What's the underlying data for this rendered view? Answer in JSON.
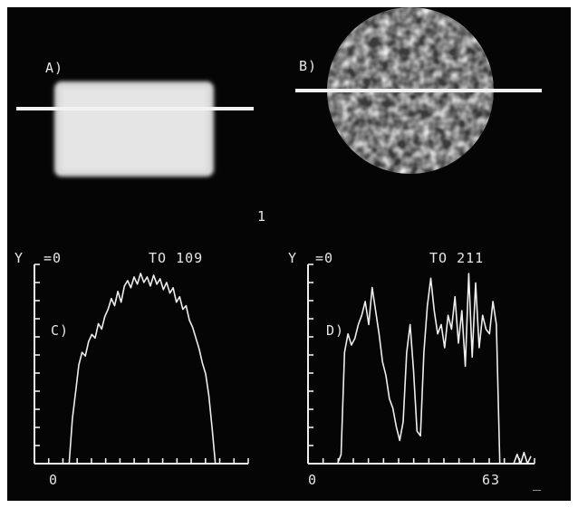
{
  "panels": {
    "a": {
      "label": "A)"
    },
    "b": {
      "label": "B)"
    }
  },
  "figure_number": "1",
  "plots": {
    "c": {
      "label": "C)",
      "y_text": "Y",
      "y_start": "=0",
      "y_end": "TO 109",
      "x_start": "0",
      "x_end": "",
      "y_max": 109,
      "x_max": 63,
      "values": [
        0,
        0,
        0,
        0,
        0,
        0,
        0,
        0,
        0,
        0,
        25,
        40,
        55,
        62,
        60,
        68,
        72,
        70,
        78,
        75,
        82,
        86,
        92,
        88,
        96,
        90,
        99,
        102,
        98,
        104,
        100,
        106,
        101,
        104,
        99,
        105,
        100,
        103,
        97,
        101,
        95,
        98,
        90,
        93,
        86,
        88,
        80,
        76,
        70,
        64,
        56,
        50,
        38,
        20,
        0,
        0,
        0,
        0,
        0,
        0,
        0,
        0,
        0,
        0
      ]
    },
    "d": {
      "label": "D)",
      "y_text": "Y",
      "y_start": "=0",
      "y_end": "TO 211",
      "x_start": "0",
      "x_end": "63",
      "y_max": 211,
      "x_max": 63,
      "values": [
        0,
        0,
        0,
        0,
        0,
        0,
        0,
        0,
        10,
        120,
        140,
        128,
        135,
        150,
        160,
        175,
        150,
        190,
        165,
        140,
        110,
        95,
        70,
        60,
        40,
        25,
        45,
        120,
        150,
        100,
        35,
        30,
        120,
        170,
        200,
        165,
        140,
        150,
        125,
        160,
        145,
        180,
        130,
        165,
        105,
        205,
        115,
        195,
        125,
        160,
        145,
        140,
        175,
        150,
        0,
        0,
        0,
        0,
        0,
        10,
        0,
        12,
        0,
        8
      ]
    }
  },
  "cursor": "_"
}
